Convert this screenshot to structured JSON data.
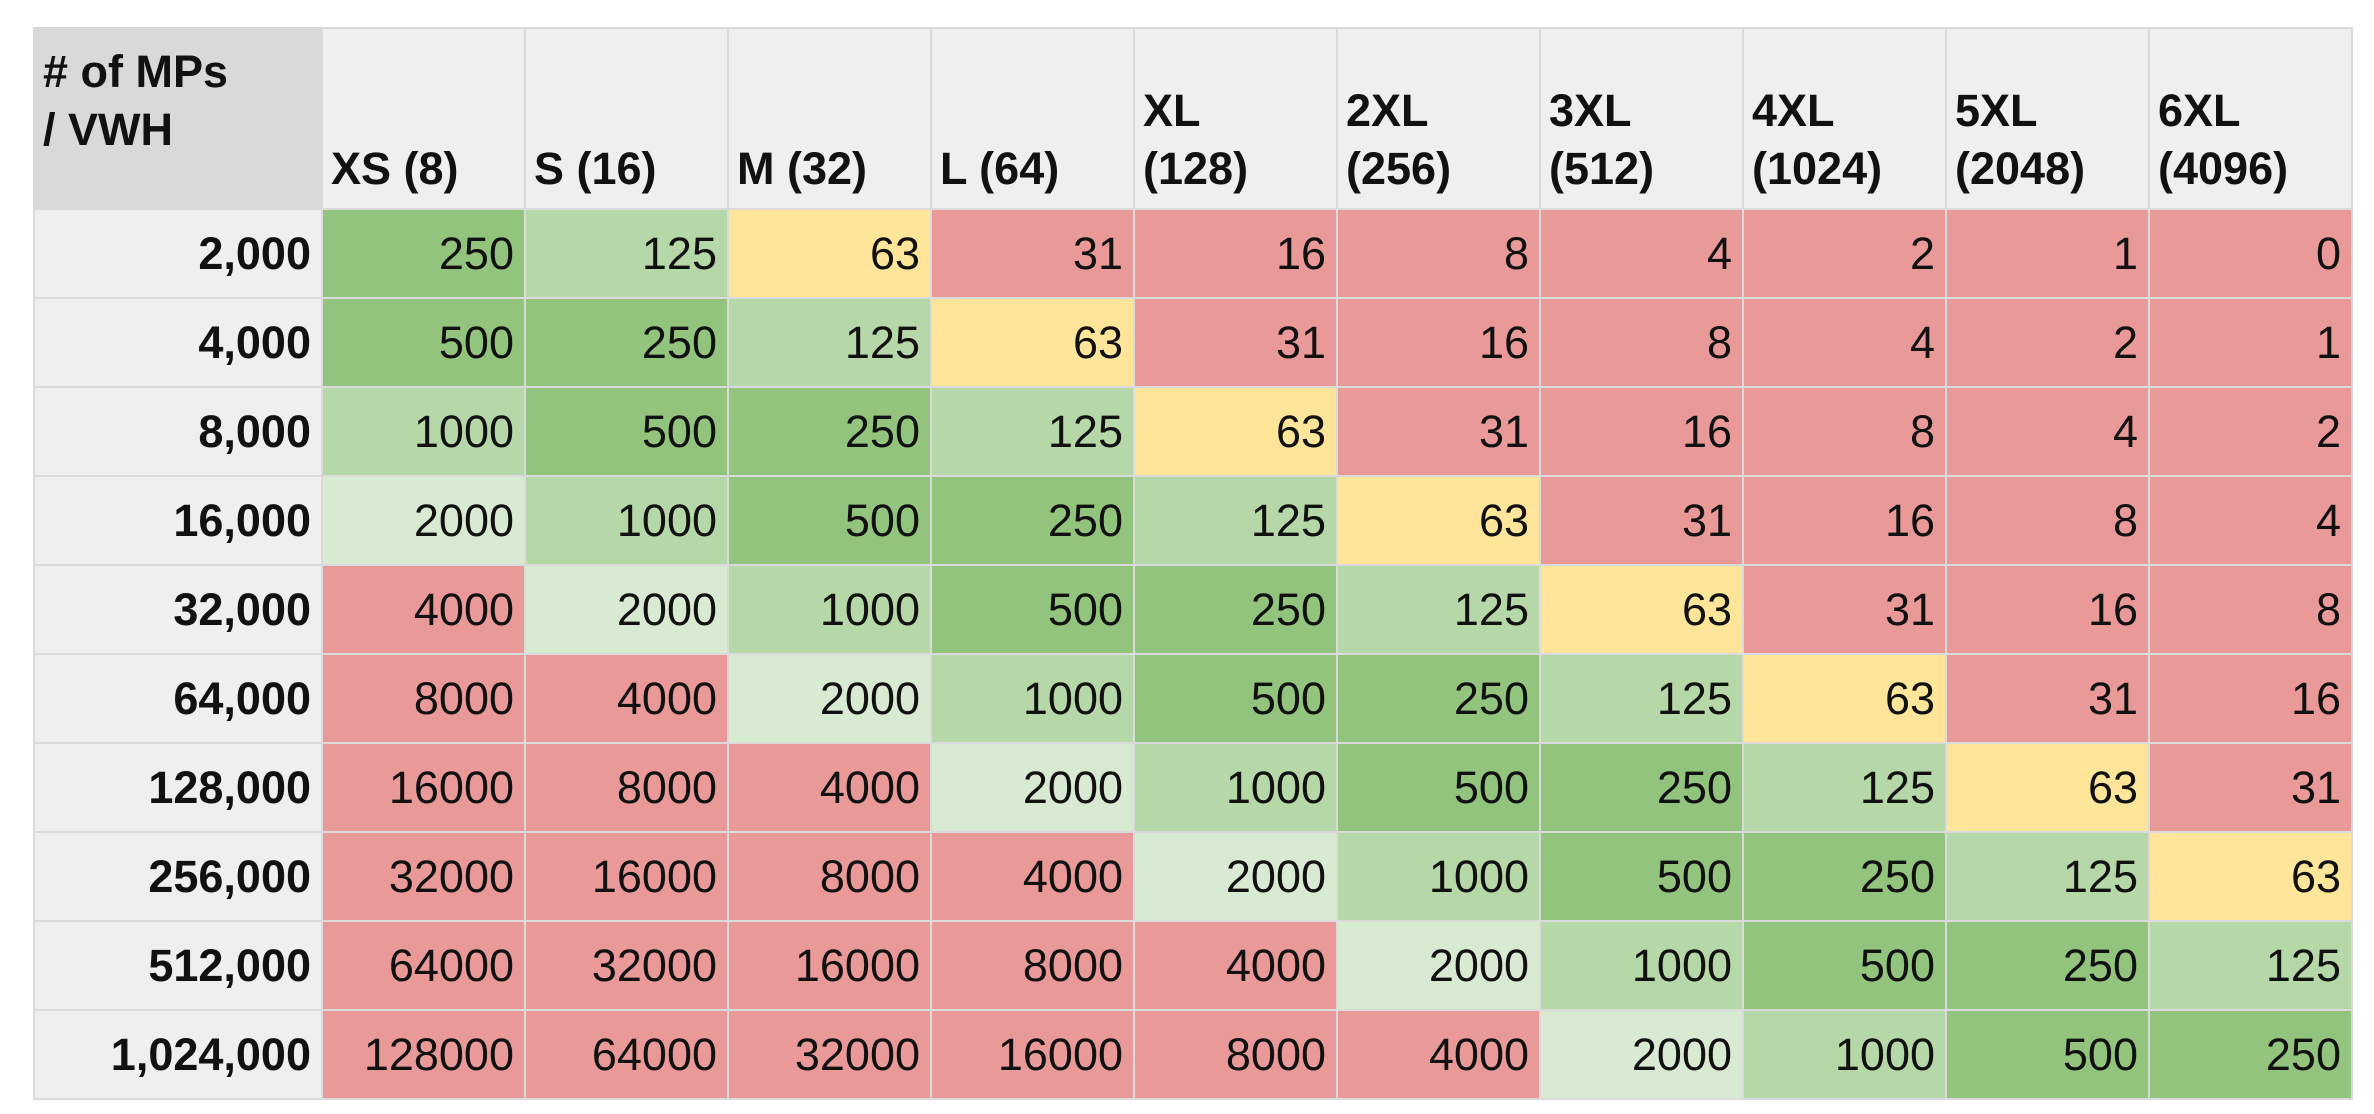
{
  "chart_data": {
    "type": "heatmap",
    "corner_label": [
      "# of MPs",
      "/ VWH"
    ],
    "columns": [
      [
        "XS (8)"
      ],
      [
        "S (16)"
      ],
      [
        "M (32)"
      ],
      [
        "L (64)"
      ],
      [
        "XL",
        "(128)"
      ],
      [
        "2XL",
        "(256)"
      ],
      [
        "3XL",
        "(512)"
      ],
      [
        "4XL",
        "(1024)"
      ],
      [
        "5XL",
        "(2048)"
      ],
      [
        "6XL",
        "(4096)"
      ]
    ],
    "rows": [
      {
        "label": "2,000",
        "values": [
          250,
          125,
          63,
          31,
          16,
          8,
          4,
          2,
          1,
          0
        ]
      },
      {
        "label": "4,000",
        "values": [
          500,
          250,
          125,
          63,
          31,
          16,
          8,
          4,
          2,
          1
        ]
      },
      {
        "label": "8,000",
        "values": [
          1000,
          500,
          250,
          125,
          63,
          31,
          16,
          8,
          4,
          2
        ]
      },
      {
        "label": "16,000",
        "values": [
          2000,
          1000,
          500,
          250,
          125,
          63,
          31,
          16,
          8,
          4
        ]
      },
      {
        "label": "32,000",
        "values": [
          4000,
          2000,
          1000,
          500,
          250,
          125,
          63,
          31,
          16,
          8
        ]
      },
      {
        "label": "64,000",
        "values": [
          8000,
          4000,
          2000,
          1000,
          500,
          250,
          125,
          63,
          31,
          16
        ]
      },
      {
        "label": "128,000",
        "values": [
          16000,
          8000,
          4000,
          2000,
          1000,
          500,
          250,
          125,
          63,
          31
        ]
      },
      {
        "label": "256,000",
        "values": [
          32000,
          16000,
          8000,
          4000,
          2000,
          1000,
          500,
          250,
          125,
          63
        ]
      },
      {
        "label": "512,000",
        "values": [
          64000,
          32000,
          16000,
          8000,
          4000,
          2000,
          1000,
          500,
          250,
          125
        ]
      },
      {
        "label": "1,024,000",
        "values": [
          128000,
          64000,
          32000,
          16000,
          8000,
          4000,
          2000,
          1000,
          500,
          250
        ]
      }
    ],
    "color_scale": {
      "red": "#ea9999",
      "yellow": "#ffe599",
      "green_light": "#d9ead3",
      "green_medium": "#b6d7a8",
      "green_dark": "#93c47d"
    }
  }
}
